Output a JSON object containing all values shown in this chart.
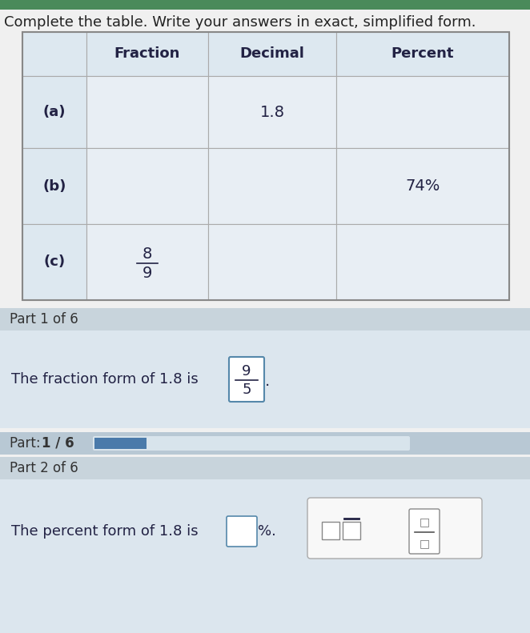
{
  "title": "Complete the table. Write your answers in exact, simplified form.",
  "title_fontsize": 13,
  "title_color": "#222222",
  "page_bg": "#f0f0f0",
  "green_top_strip": "#4a8a5a",
  "table_outer_bg": "#ffffff",
  "table_header_bg": "#dde8f0",
  "table_cell_bg": "#e8eef4",
  "table_label_col_bg": "#dde8f0",
  "table_border_color": "#aaaaaa",
  "header_row_labels": [
    "",
    "Fraction",
    "Decimal",
    "Percent"
  ],
  "row_labels": [
    "(a)",
    "(b)",
    "(c)"
  ],
  "part1_section_bg": "#c8d4dc",
  "part1_content_bg": "#dce6ee",
  "part1_text": "Part 1 of 6",
  "part1_answer_text": "The fraction form of 1.8 is",
  "part1_fraction_num": "9",
  "part1_fraction_den": "5",
  "progress_bar_bg": "#b8c8d4",
  "progress_filled_color": "#4a7aaa",
  "progress_unfilled_color": "#d8e4ec",
  "part2_section_bg": "#c8d4dc",
  "part2_content_bg": "#dce6ee",
  "part2_section_text": "Part 2 of 6",
  "part2_answer_text": "The percent form of 1.8 is",
  "cell_text_color": "#222244",
  "part_text_color": "#333333",
  "fraction_box_border": "#5588aa",
  "widget_box_bg": "#f8f8f8",
  "widget_box_border": "#aaaaaa"
}
